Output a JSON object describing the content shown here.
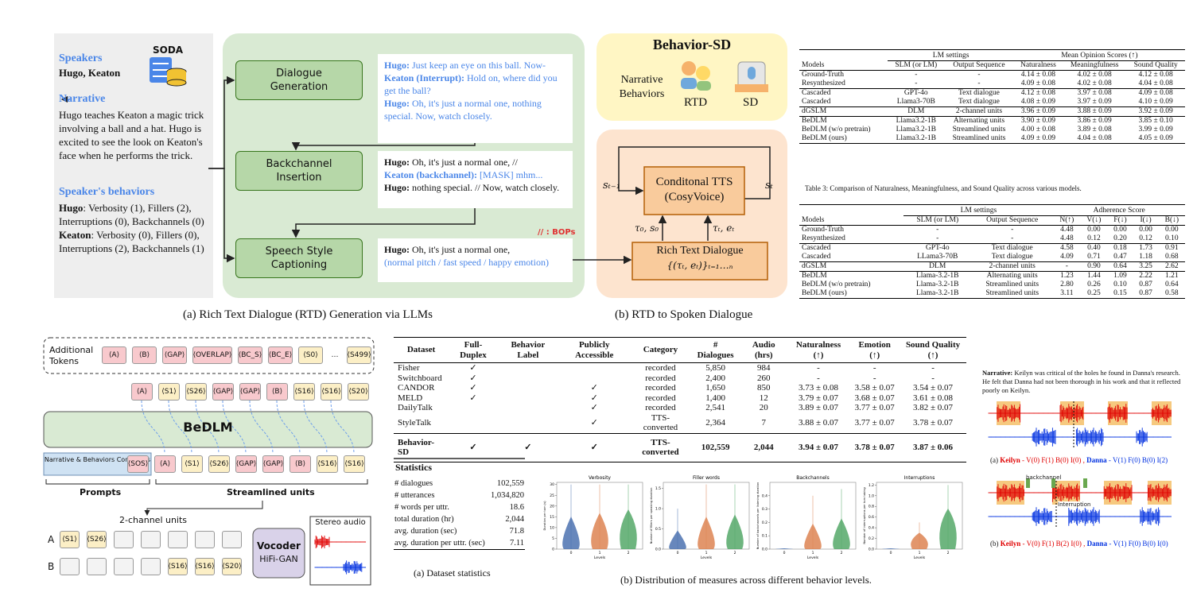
{
  "panel_a": {
    "speakers_label": "Speakers",
    "speakers": "Hugo, Keaton",
    "source": "SODA",
    "narrative_label": "Narrative",
    "narrative": "Hugo teaches Keaton a magic trick involving a ball and a hat. Hugo is excited to see the look on Keaton's face when he performs the trick.",
    "behaviors_label": "Speaker's behaviors",
    "behaviors": [
      {
        "name": "Hugo",
        "text": ": Verbosity (1), Fillers (2), Interruptions (0), Backchannels (0)"
      },
      {
        "name": "Keaton",
        "text": ": Verbosity (0), Fillers (0), Interruptions (2), Backchannels (1)"
      }
    ],
    "steps": [
      "Dialogue Generation",
      "Backchannel Insertion",
      "Speech Style Captioning"
    ],
    "outputs": [
      [
        {
          "speaker": "Hugo:",
          "text": " Just keep an eye on this ball. Now-"
        },
        {
          "speaker": "Keaton (Interrupt):",
          "text": " Hold on, where did you get the ball?"
        },
        {
          "speaker": "Hugo:",
          "text": " Oh, it's just a normal one, nothing special. Now, watch closely."
        }
      ],
      [
        {
          "speaker": "Hugo:",
          "text": " Oh, it's just a normal one, //"
        },
        {
          "speaker": "Keaton (backchannel):",
          "text": " [MASK] mhm..."
        },
        {
          "speaker": "Hugo:",
          "text": " nothing special. // Now, watch closely."
        }
      ],
      [
        {
          "speaker": "Hugo:",
          "text": " Oh, it's just a normal one,"
        },
        {
          "speaker": null,
          "text": "(normal pitch / fast speed / happy emotion)"
        }
      ]
    ],
    "bops_note": "// : BOPs",
    "caption": "(a) Rich Text Dialogue (RTD) Generation via LLMs"
  },
  "panel_b": {
    "title": "Behavior-SD",
    "narrative_behaviors": "Narrative Behaviors",
    "rtd": "RTD",
    "sd": "SD",
    "tts": "Conditonal TTS (CosyVoice)",
    "state_prev": "sₜ₋₁",
    "state_next": "sₜ",
    "input_first": "τ₀, s₀",
    "input_t": "τₜ, eₜ",
    "rich_text": "Rich Text Dialogue",
    "rich_text_formula": "{(τₜ, eₜ)}ₜ₌₁…ₙ",
    "caption": "(b) RTD to Spoken Dialogue"
  },
  "table3": {
    "header_groups": [
      "LM settings",
      "Mean Opinion Scores (↑)"
    ],
    "columns": [
      "Models",
      "SLM (or LM)",
      "Output Sequence",
      "Naturalness",
      "Meaningfulness",
      "Sound Quality"
    ],
    "row_groups": [
      [
        [
          "Ground-Truth",
          "-",
          "-",
          "4.14 ± 0.08",
          "4.02 ± 0.08",
          "4.12 ± 0.08"
        ],
        [
          "Resynthesized",
          "-",
          "-",
          "4.09 ± 0.08",
          "4.02 ± 0.08",
          "4.04 ± 0.08"
        ]
      ],
      [
        [
          "Cascaded",
          "GPT-4o",
          "Text dialogue",
          "4.12 ± 0.08",
          "3.97 ± 0.08",
          "4.09 ± 0.08"
        ],
        [
          "Cascaded",
          "Llama3-70B",
          "Text dialogue",
          "4.08 ± 0.09",
          "3.97 ± 0.09",
          "4.10 ± 0.09"
        ]
      ],
      [
        [
          "dGSLM",
          "DLM",
          "2-channel units",
          "3.96 ± 0.09",
          "3.88 ± 0.09",
          "3.92 ± 0.09"
        ]
      ],
      [
        [
          "BeDLM",
          "Llama3.2-1B",
          "Alternating units",
          "3.90 ± 0.09",
          "3.86 ± 0.09",
          "3.85 ± 0.10"
        ],
        [
          "BeDLM (w/o pretrain)",
          "Llama3.2-1B",
          "Streamlined units",
          "4.00 ± 0.08",
          "3.89 ± 0.08",
          "3.99 ± 0.09"
        ],
        [
          "BeDLM (ours)",
          "Llama3.2-1B",
          "Streamlined units",
          "4.09 ± 0.09",
          "4.04 ± 0.08",
          "4.05 ± 0.09"
        ]
      ]
    ],
    "caption": "Table 3: Comparison of Naturalness, Meaningfulness, and Sound Quality across various models."
  },
  "table4": {
    "header_groups": [
      "LM settings",
      "Adherence Score"
    ],
    "columns": [
      "Models",
      "SLM (or LM)",
      "Output Sequence",
      "N(↑)",
      "V(↓)",
      "F(↓)",
      "I(↓)",
      "B(↓)"
    ],
    "row_groups": [
      [
        [
          "Ground-Truth",
          "-",
          "-",
          "4.48",
          "0.00",
          "0.00",
          "0.00",
          "0.00"
        ],
        [
          "Resynthesized",
          "-",
          "-",
          "4.48",
          "0.12",
          "0.20",
          "0.12",
          "0.10"
        ]
      ],
      [
        [
          "Cascaded",
          "GPT-4o",
          "Text dialogue",
          "4.58",
          "0.40",
          "0.18",
          "1.73",
          "0.91"
        ],
        [
          "Cascaded",
          "LLama3-70B",
          "Text dialogue",
          "4.09",
          "0.71",
          "0.47",
          "1.18",
          "0.68"
        ]
      ],
      [
        [
          "dGSLM",
          "DLM",
          "2-channel units",
          "-",
          "0.90",
          "0.64",
          "3.25",
          "2.62"
        ]
      ],
      [
        [
          "BeDLM",
          "Llama-3.2-1B",
          "Alternating units",
          "1.23",
          "1.44",
          "1.09",
          "2.22",
          "1.21"
        ],
        [
          "BeDLM (w/o pretrain)",
          "Llama-3.2-1B",
          "Streamlined units",
          "2.80",
          "0.26",
          "0.10",
          "0.87",
          "0.64"
        ],
        [
          "BeDLM (ours)",
          "Llama-3.2-1B",
          "Streamlined units",
          "3.11",
          "0.25",
          "0.15",
          "0.87",
          "0.58"
        ]
      ]
    ]
  },
  "bedlm": {
    "additional_label": "Additional Tokens",
    "additional_tokens": [
      "⟨A⟩",
      "⟨B⟩",
      "⟨GAP⟩",
      "⟨OVERLAP⟩",
      "⟨BC_S⟩",
      "⟨BC_E⟩",
      "⟨S0⟩",
      "…",
      "⟨S499⟩"
    ],
    "input_tokens": [
      "⟨A⟩",
      "⟨S1⟩",
      "⟨S26⟩",
      "⟨GAP⟩",
      "⟨GAP⟩",
      "⟨B⟩",
      "⟨S16⟩",
      "⟨S16⟩",
      "⟨S20⟩"
    ],
    "model": "BeDLM",
    "conditions": "Narrative & Behaviors Conditions",
    "output_tokens": [
      "⟨SOS⟩",
      "⟨A⟩",
      "⟨S1⟩",
      "⟨S26⟩",
      "⟨GAP⟩",
      "⟨GAP⟩",
      "⟨B⟩",
      "⟨S16⟩",
      "⟨S16⟩"
    ],
    "prompts": "Prompts",
    "streamlined": "Streamlined units",
    "two_channel": "2-channel units",
    "channel_a": "A",
    "channel_b": "B",
    "channel_a_tokens": [
      "⟨S1⟩",
      "⟨S26⟩",
      null,
      null,
      null,
      null,
      null
    ],
    "channel_b_tokens": [
      null,
      null,
      null,
      null,
      "⟨S16⟩",
      "⟨S16⟩",
      "⟨S20⟩"
    ],
    "vocoder": "Vocoder",
    "vocoder_model": "HiFi-GAN",
    "stereo": "Stereo audio"
  },
  "dataset_table": {
    "columns": [
      "Dataset",
      "Full-Duplex",
      "Behavior Label",
      "Publicly Accessible",
      "Category",
      "# Dialogues",
      "Audio (hrs)",
      "Naturalness (↑)",
      "Emotion (↑)",
      "Sound Quality (↑)"
    ],
    "row_groups": [
      [
        [
          "Fisher",
          "✓",
          null,
          null,
          "recorded",
          "5,850",
          "984",
          "-",
          "-",
          "-"
        ],
        [
          "Switchboard",
          "✓",
          null,
          null,
          "recorded",
          "2,400",
          "260",
          "-",
          "-",
          "-"
        ],
        [
          "CANDOR",
          "✓",
          null,
          "✓",
          "recorded",
          "1,650",
          "850",
          "3.73 ± 0.08",
          "3.58 ± 0.07",
          "3.54 ± 0.07"
        ],
        [
          "MELD",
          "✓",
          null,
          "✓",
          "recorded",
          "1,400",
          "12",
          "3.79 ± 0.07",
          "3.68 ± 0.07",
          "3.61 ± 0.08"
        ],
        [
          "DailyTalk",
          null,
          null,
          "✓",
          "recorded",
          "2,541",
          "20",
          "3.89 ± 0.07",
          "3.77 ± 0.07",
          "3.82 ± 0.07"
        ],
        [
          "StyleTalk",
          null,
          null,
          "✓",
          "TTS-converted",
          "2,364",
          "7",
          "3.88 ± 0.07",
          "3.77 ± 0.07",
          "3.78 ± 0.07"
        ]
      ],
      [
        [
          "Behavior-SD",
          "✓",
          "✓",
          "✓",
          "TTS-converted",
          "102,559",
          "2,044",
          "3.94 ± 0.07",
          "3.78 ± 0.07",
          "3.87 ± 0.06"
        ]
      ]
    ]
  },
  "statistics": {
    "title": "Statistics",
    "rows": [
      [
        "# dialogues",
        "102,559"
      ],
      [
        "# utterances",
        "1,034,820"
      ],
      [
        "# words per uttr.",
        "18.6"
      ],
      [
        "total duration (hr)",
        "2,044"
      ],
      [
        "avg. duration (sec)",
        "71.8"
      ],
      [
        "avg. duration per uttr. (sec)",
        "7.11"
      ]
    ],
    "caption": "(a) Dataset statistics"
  },
  "chart_data": [
    {
      "type": "violin",
      "title": "Verbosity",
      "categories": [
        "0",
        "1",
        "2"
      ],
      "xlabel": "Levels",
      "ylabel": "Duration per turn (s)",
      "values": [
        3,
        6,
        9
      ],
      "max": [
        30,
        30,
        30
      ],
      "colors": [
        "#4c72b0",
        "#dd8452",
        "#55a868"
      ],
      "ylim": [
        0,
        31
      ],
      "yticks": [
        0,
        5,
        10,
        15,
        20,
        25,
        30
      ]
    },
    {
      "type": "violin",
      "title": "Filler words",
      "categories": [
        "0",
        "1",
        "2"
      ],
      "xlabel": "Levels",
      "ylabel": "Number of fillers per speaking duration",
      "values": [
        0.02,
        0.15,
        0.25
      ],
      "max": [
        1.0,
        1.6,
        1.6
      ],
      "colors": [
        "#4c72b0",
        "#dd8452",
        "#55a868"
      ],
      "ylim": [
        0,
        1.65
      ],
      "yticks": [
        {
          "value": 0,
          "label": "0.0"
        },
        {
          "value": 0.5,
          "label": "0.5"
        },
        {
          "value": 1,
          "label": "1.0"
        },
        {
          "value": 1.5,
          "label": "1.5"
        }
      ]
    },
    {
      "type": "violin",
      "title": "Backchannels",
      "categories": [
        "0",
        "1",
        "2"
      ],
      "xlabel": "Levels",
      "ylabel": "Number of backchannels per listening duration",
      "values": [
        0,
        0.02,
        0.05
      ],
      "max": [
        0,
        0.4,
        0.45
      ],
      "colors": [
        "#4c72b0",
        "#dd8452",
        "#55a868"
      ],
      "ylim": [
        0,
        0.5
      ],
      "yticks": [
        {
          "value": 0,
          "label": "0.0"
        },
        0.1,
        0.2,
        0.3,
        0.4
      ]
    },
    {
      "type": "violin",
      "title": "Interruptions",
      "categories": [
        "0",
        "1",
        "2"
      ],
      "xlabel": "Levels",
      "ylabel": "Number of interruptions per turn taking",
      "values": [
        0,
        0.15,
        0.4
      ],
      "max": [
        0,
        0.5,
        1.2
      ],
      "colors": [
        "#4c72b0",
        "#dd8452",
        "#55a868"
      ],
      "ylim": [
        0,
        1.25
      ],
      "yticks": [
        {
          "value": 0,
          "label": "0.0"
        },
        0.2,
        0.4,
        0.6,
        0.8,
        {
          "value": 1,
          "label": "1.0"
        },
        1.2
      ]
    }
  ],
  "distribution_caption": "(b) Distribution of measures across different behavior levels.",
  "examples": {
    "narrative_label": "Narrative:",
    "narrative": " Keilyn was critical of the holes he found in Danna's research. He felt that Danna had not been thorough in his work and that it reflected poorly on Keilyn.",
    "backchannel": "backchannel",
    "interruption": "Interruption",
    "captions": [
      {
        "tag": "(a)",
        "speaker_a": "Keilyn",
        "scores_a": "- V(0) F(1) B(0) I(0) ,",
        "speaker_b": "Danna",
        "scores_b": "- V(1) F(0) B(0) I(2)"
      },
      {
        "tag": "(b)",
        "speaker_a": "Keilyn",
        "scores_a": "- V(0) F(1) B(2) I(0) ,",
        "speaker_b": "Danna",
        "scores_b": "- V(1) F(0) B(0) I(0)"
      }
    ]
  }
}
